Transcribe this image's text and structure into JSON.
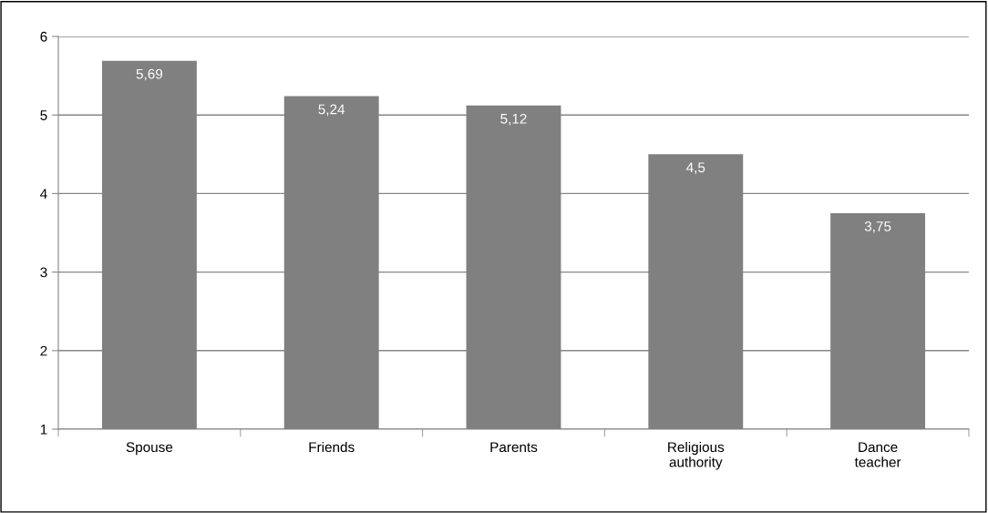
{
  "chart_data": {
    "type": "bar",
    "categories": [
      "Spouse",
      "Friends",
      "Parents",
      "Religious\nauthority",
      "Dance\nteacher"
    ],
    "values": [
      5.69,
      5.24,
      5.12,
      4.5,
      3.75
    ],
    "value_labels": [
      "5,69",
      "5,24",
      "5,12",
      "4,5",
      "3,75"
    ],
    "color": "#808080",
    "ylim": [
      1,
      6
    ],
    "yticks": [
      1,
      2,
      3,
      4,
      5,
      6
    ],
    "grid": "y",
    "legend": false
  }
}
